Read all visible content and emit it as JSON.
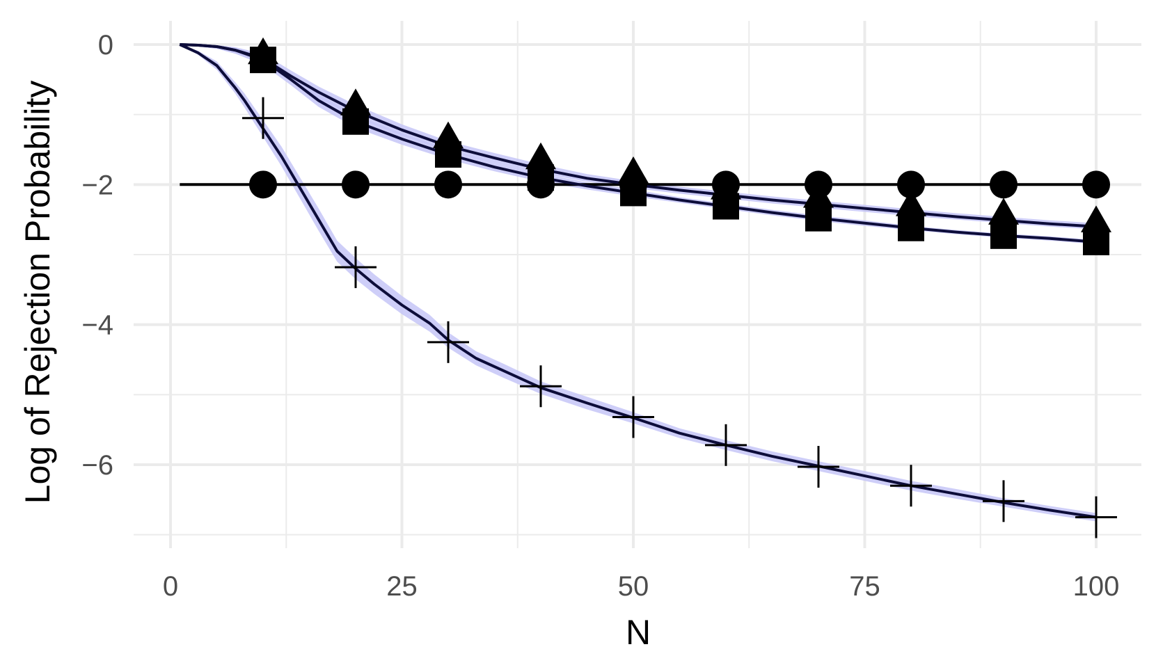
{
  "chart_data": {
    "type": "line",
    "title": "",
    "xlabel": "N",
    "ylabel": "Log of Rejection Probability",
    "xlim": [
      -1.5,
      103
    ],
    "ylim": [
      -7.05,
      0.3
    ],
    "xticks": [
      0,
      25,
      50,
      75,
      100
    ],
    "yticks": [
      0,
      -2,
      -4,
      -6
    ],
    "grid": true,
    "legend": "none",
    "colors": {
      "line": "#0d0d3a",
      "ribbon": "#c5c5f7",
      "marker": "#000000",
      "grid": "#ebebeb",
      "tick_text": "#4d4d4d"
    },
    "series": [
      {
        "marker": "circle",
        "line_color": "#000000",
        "ribbon": false,
        "x": [
          1,
          100
        ],
        "y": [
          -2,
          -2
        ],
        "markers_x": [
          10,
          20,
          30,
          40,
          50,
          60,
          70,
          80,
          90,
          100
        ],
        "markers_y": [
          -2,
          -2,
          -2,
          -2,
          -2,
          -2,
          -2,
          -2,
          -2,
          -2
        ]
      },
      {
        "marker": "triangle",
        "line_color": "#0d0d3a",
        "ribbon": true,
        "x": [
          1,
          3,
          5,
          7,
          10,
          13,
          16,
          20,
          25,
          30,
          35,
          40,
          45,
          50,
          55,
          60,
          65,
          70,
          75,
          80,
          85,
          90,
          95,
          100
        ],
        "y": [
          0,
          -0.01,
          -0.03,
          -0.08,
          -0.2,
          -0.45,
          -0.68,
          -0.95,
          -1.22,
          -1.45,
          -1.62,
          -1.78,
          -1.91,
          -2.0,
          -2.08,
          -2.15,
          -2.22,
          -2.28,
          -2.34,
          -2.4,
          -2.46,
          -2.51,
          -2.56,
          -2.6
        ],
        "y_low": [
          0,
          -0.03,
          -0.06,
          -0.13,
          -0.27,
          -0.53,
          -0.77,
          -1.04,
          -1.3,
          -1.52,
          -1.69,
          -1.84,
          -1.96,
          -2.05,
          -2.13,
          -2.2,
          -2.27,
          -2.33,
          -2.39,
          -2.45,
          -2.5,
          -2.55,
          -2.6,
          -2.64
        ],
        "y_high": [
          0,
          0.01,
          -0.01,
          -0.04,
          -0.13,
          -0.37,
          -0.6,
          -0.86,
          -1.14,
          -1.38,
          -1.55,
          -1.71,
          -1.85,
          -1.95,
          -2.03,
          -2.1,
          -2.17,
          -2.23,
          -2.29,
          -2.35,
          -2.41,
          -2.46,
          -2.51,
          -2.55
        ],
        "markers_x": [
          10,
          20,
          30,
          40,
          50,
          60,
          70,
          80,
          90,
          100
        ],
        "markers_y": [
          -0.15,
          -0.88,
          -1.35,
          -1.65,
          -1.85,
          -2.08,
          -2.2,
          -2.32,
          -2.44,
          -2.55
        ]
      },
      {
        "marker": "square",
        "line_color": "#0d0d3a",
        "ribbon": true,
        "x": [
          1,
          3,
          5,
          7,
          10,
          13,
          16,
          20,
          25,
          30,
          35,
          40,
          45,
          50,
          55,
          60,
          65,
          70,
          75,
          80,
          85,
          90,
          95,
          100
        ],
        "y": [
          0,
          -0.01,
          -0.03,
          -0.08,
          -0.22,
          -0.5,
          -0.8,
          -1.1,
          -1.35,
          -1.57,
          -1.75,
          -1.9,
          -2.02,
          -2.12,
          -2.22,
          -2.31,
          -2.4,
          -2.48,
          -2.55,
          -2.62,
          -2.68,
          -2.73,
          -2.77,
          -2.82
        ],
        "y_low": [
          0,
          -0.03,
          -0.06,
          -0.13,
          -0.29,
          -0.58,
          -0.89,
          -1.19,
          -1.43,
          -1.64,
          -1.81,
          -1.96,
          -2.07,
          -2.17,
          -2.26,
          -2.35,
          -2.44,
          -2.52,
          -2.59,
          -2.65,
          -2.71,
          -2.76,
          -2.8,
          -2.85
        ],
        "y_high": [
          0,
          0.01,
          -0.01,
          -0.04,
          -0.15,
          -0.42,
          -0.71,
          -1.01,
          -1.27,
          -1.5,
          -1.69,
          -1.84,
          -1.97,
          -2.07,
          -2.18,
          -2.27,
          -2.36,
          -2.44,
          -2.51,
          -2.59,
          -2.65,
          -2.7,
          -2.74,
          -2.79
        ],
        "markers_x": [
          10,
          20,
          30,
          40,
          50,
          60,
          70,
          80,
          90,
          100
        ],
        "markers_y": [
          -0.22,
          -1.1,
          -1.57,
          -1.9,
          -2.12,
          -2.31,
          -2.48,
          -2.62,
          -2.73,
          -2.82
        ]
      },
      {
        "marker": "cross",
        "line_color": "#0d0d3a",
        "ribbon": true,
        "x": [
          1,
          3,
          5,
          7,
          8,
          10,
          12,
          14,
          16,
          18,
          20,
          22,
          25,
          28,
          30,
          33,
          36,
          40,
          45,
          50,
          55,
          60,
          65,
          70,
          75,
          80,
          85,
          90,
          95,
          100
        ],
        "y": [
          0,
          -0.12,
          -0.3,
          -0.62,
          -0.8,
          -1.2,
          -1.6,
          -2.05,
          -2.5,
          -2.95,
          -3.2,
          -3.42,
          -3.72,
          -3.98,
          -4.22,
          -4.48,
          -4.66,
          -4.9,
          -5.12,
          -5.33,
          -5.55,
          -5.72,
          -5.88,
          -6.02,
          -6.16,
          -6.3,
          -6.42,
          -6.54,
          -6.65,
          -6.75
        ],
        "y_low": [
          0,
          -0.15,
          -0.36,
          -0.7,
          -0.9,
          -1.32,
          -1.74,
          -2.2,
          -2.66,
          -3.1,
          -3.35,
          -3.56,
          -3.85,
          -4.1,
          -4.33,
          -4.58,
          -4.76,
          -4.99,
          -5.21,
          -5.41,
          -5.62,
          -5.79,
          -5.95,
          -6.09,
          -6.23,
          -6.37,
          -6.49,
          -6.6,
          -6.71,
          -6.81
        ],
        "y_high": [
          0,
          -0.09,
          -0.24,
          -0.54,
          -0.7,
          -1.08,
          -1.46,
          -1.9,
          -2.34,
          -2.8,
          -3.05,
          -3.28,
          -3.59,
          -3.86,
          -4.11,
          -4.38,
          -4.56,
          -4.81,
          -5.03,
          -5.25,
          -5.48,
          -5.65,
          -5.81,
          -5.95,
          -6.09,
          -6.23,
          -6.35,
          -6.48,
          -6.59,
          -6.69
        ],
        "markers_x": [
          10,
          20,
          30,
          40,
          50,
          60,
          70,
          80,
          90,
          100
        ],
        "markers_y": [
          -1.05,
          -3.18,
          -4.25,
          -4.88,
          -5.32,
          -5.72,
          -6.03,
          -6.3,
          -6.52,
          -6.75
        ]
      }
    ]
  }
}
